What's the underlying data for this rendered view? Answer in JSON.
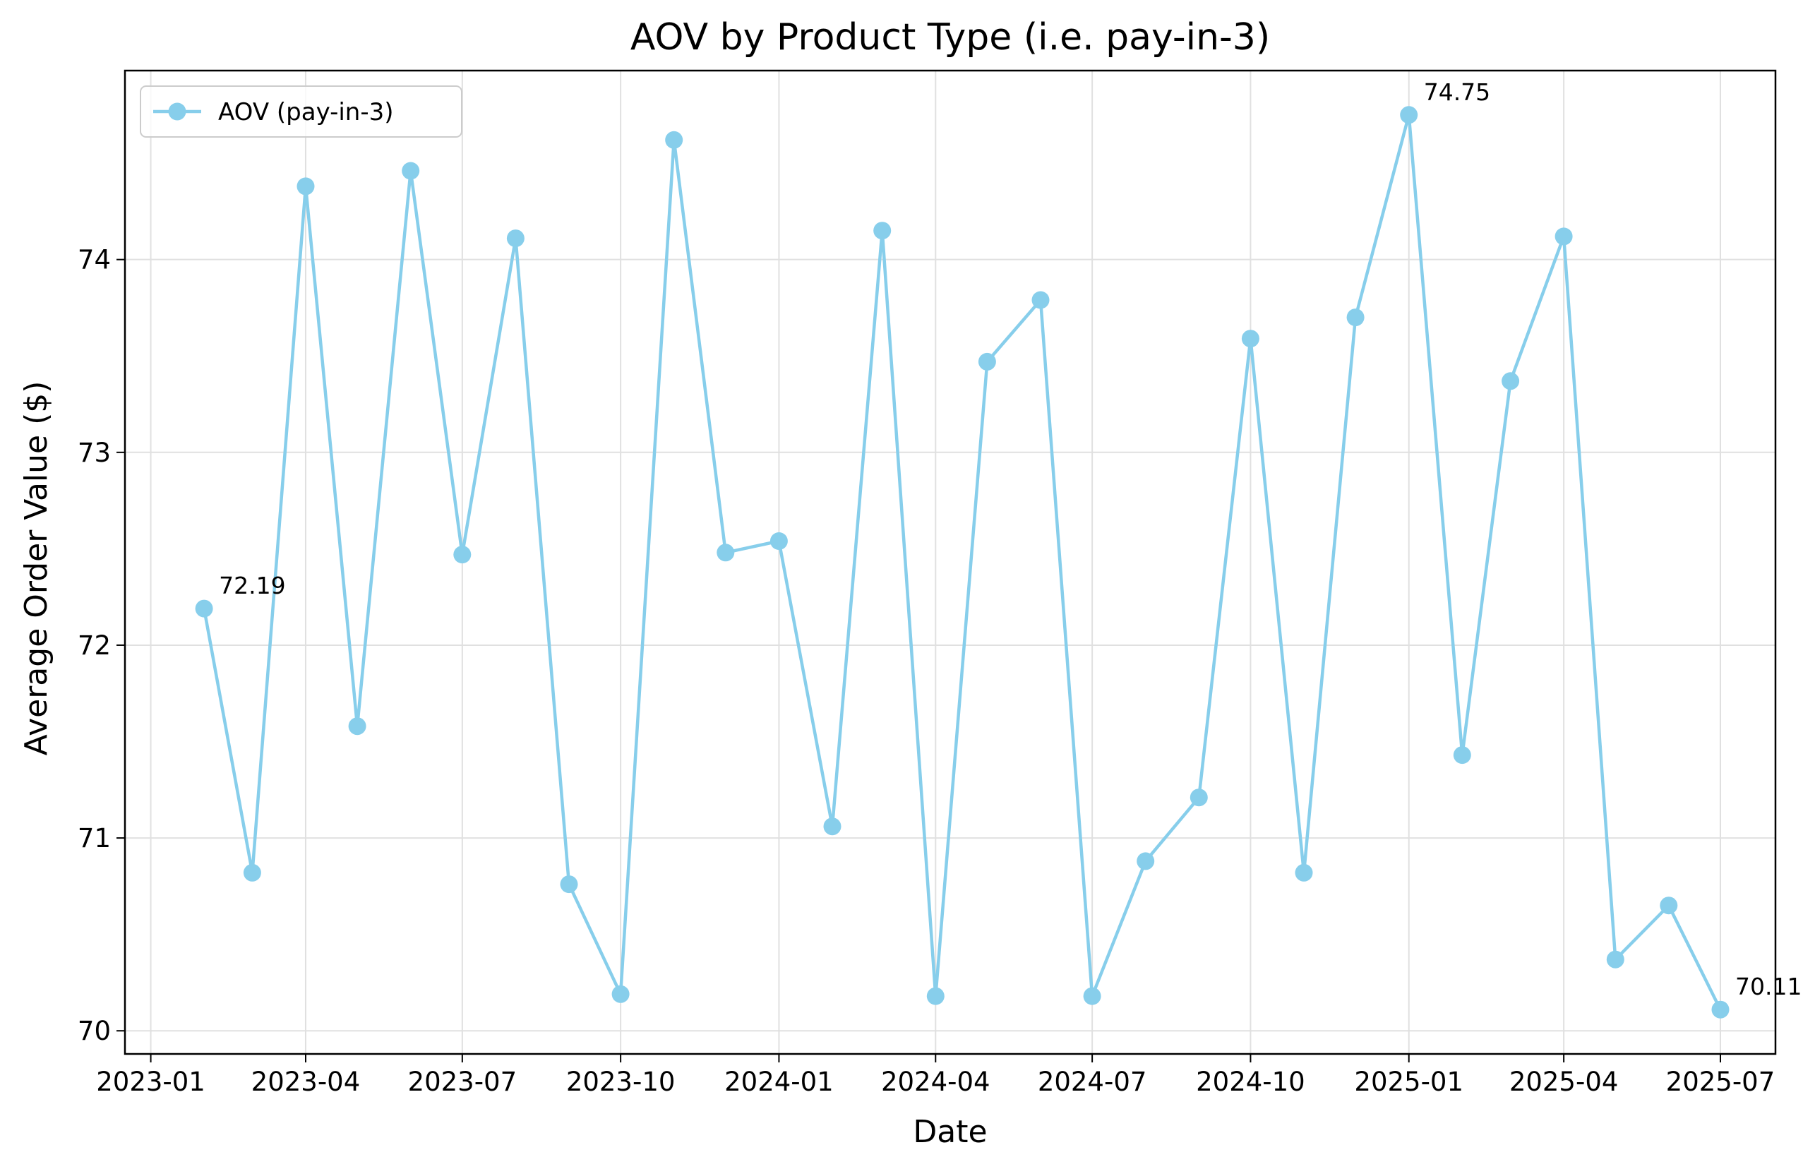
{
  "chart_data": {
    "type": "line",
    "title": "AOV by Product Type (i.e. pay-in-3)",
    "xlabel": "Date",
    "ylabel": "Average Order Value ($)",
    "x": [
      "2023-02-01",
      "2023-03-01",
      "2023-04-01",
      "2023-05-01",
      "2023-06-01",
      "2023-07-01",
      "2023-08-01",
      "2023-09-01",
      "2023-10-01",
      "2023-11-01",
      "2023-12-01",
      "2024-01-01",
      "2024-02-01",
      "2024-03-01",
      "2024-04-01",
      "2024-05-01",
      "2024-06-01",
      "2024-07-01",
      "2024-08-01",
      "2024-09-01",
      "2024-10-01",
      "2024-11-01",
      "2024-12-01",
      "2025-01-01",
      "2025-02-01",
      "2025-03-01",
      "2025-04-01",
      "2025-05-01",
      "2025-06-01",
      "2025-07-01"
    ],
    "series": [
      {
        "name": "AOV (pay-in-3)",
        "color": "#87CEEB",
        "marker": "circle",
        "values": [
          72.19,
          70.82,
          74.38,
          71.58,
          74.46,
          72.47,
          74.11,
          70.76,
          70.19,
          74.62,
          72.48,
          72.54,
          71.06,
          74.15,
          70.18,
          73.47,
          73.79,
          70.18,
          70.88,
          71.21,
          73.59,
          70.82,
          73.7,
          74.75,
          71.43,
          73.37,
          74.12,
          70.37,
          70.65,
          70.11
        ]
      }
    ],
    "annotations": [
      {
        "x": "2023-02-01",
        "y": 72.19,
        "text": "72.19"
      },
      {
        "x": "2025-01-01",
        "y": 74.75,
        "text": "74.75"
      },
      {
        "x": "2025-07-01",
        "y": 70.11,
        "text": "70.11"
      }
    ],
    "xlim": [
      "2022-12-17",
      "2025-08-02"
    ],
    "ylim": [
      69.88,
      74.98
    ],
    "xticks": [
      {
        "date": "2023-01-01",
        "label": "2023-01"
      },
      {
        "date": "2023-04-01",
        "label": "2023-04"
      },
      {
        "date": "2023-07-01",
        "label": "2023-07"
      },
      {
        "date": "2023-10-01",
        "label": "2023-10"
      },
      {
        "date": "2024-01-01",
        "label": "2024-01"
      },
      {
        "date": "2024-04-01",
        "label": "2024-04"
      },
      {
        "date": "2024-07-01",
        "label": "2024-07"
      },
      {
        "date": "2024-10-01",
        "label": "2024-10"
      },
      {
        "date": "2025-01-01",
        "label": "2025-01"
      },
      {
        "date": "2025-04-01",
        "label": "2025-04"
      },
      {
        "date": "2025-07-01",
        "label": "2025-07"
      }
    ],
    "yticks": [
      {
        "value": 70,
        "label": "70"
      },
      {
        "value": 71,
        "label": "71"
      },
      {
        "value": 72,
        "label": "72"
      },
      {
        "value": 73,
        "label": "73"
      },
      {
        "value": 74,
        "label": "74"
      }
    ],
    "grid": true,
    "legend": {
      "position": "upper-left"
    }
  }
}
